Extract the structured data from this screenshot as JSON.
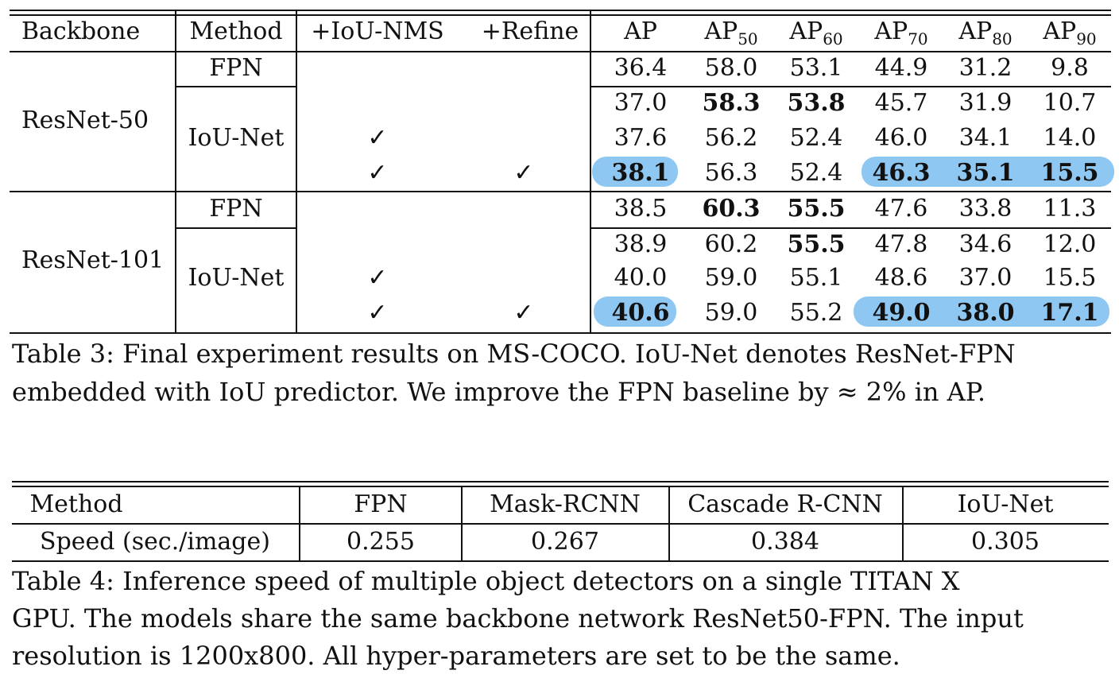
{
  "table3": {
    "headers": {
      "backbone": "Backbone",
      "method": "Method",
      "iou_nms": "+IoU-NMS",
      "refine": "+Refine",
      "ap": "AP",
      "ap50_base": "AP",
      "ap50_sub": "50",
      "ap60_base": "AP",
      "ap60_sub": "60",
      "ap70_base": "AP",
      "ap70_sub": "70",
      "ap80_base": "AP",
      "ap80_sub": "80",
      "ap90_base": "AP",
      "ap90_sub": "90"
    },
    "groups": [
      {
        "backbone": "ResNet-50",
        "fpn_label": "FPN",
        "iounet_label": "IoU-Net"
      },
      {
        "backbone": "ResNet-101",
        "fpn_label": "FPN",
        "iounet_label": "IoU-Net"
      }
    ],
    "check_mark": "✓",
    "rows": [
      {
        "values": [
          "36.4",
          "58.0",
          "53.1",
          "44.9",
          "31.2",
          "9.8"
        ]
      },
      {
        "values": [
          "37.0",
          "58.3",
          "53.8",
          "45.7",
          "31.9",
          "10.7"
        ]
      },
      {
        "values": [
          "37.6",
          "56.2",
          "52.4",
          "46.0",
          "34.1",
          "14.0"
        ]
      },
      {
        "values": [
          "38.1",
          "56.3",
          "52.4",
          "46.3",
          "35.1",
          "15.5"
        ]
      },
      {
        "values": [
          "38.5",
          "60.3",
          "55.5",
          "47.6",
          "33.8",
          "11.3"
        ]
      },
      {
        "values": [
          "38.9",
          "60.2",
          "55.5",
          "47.8",
          "34.6",
          "12.0"
        ]
      },
      {
        "values": [
          "40.0",
          "59.0",
          "55.1",
          "48.6",
          "37.0",
          "15.5"
        ]
      },
      {
        "values": [
          "40.6",
          "59.0",
          "55.2",
          "49.0",
          "38.0",
          "17.1"
        ]
      }
    ],
    "highlight_color": "#8ec8f2",
    "caption": "Table 3: Final experiment results on MS-COCO. IoU-Net denotes ResNet-FPN embedded with IoU predictor. We improve the FPN baseline by ≈ 2% in AP.",
    "caption_line1": "Table 3: Final experiment results on MS-COCO. IoU-Net denotes ResNet-FPN",
    "caption_line2": "embedded with IoU predictor. We improve the FPN baseline by ≈ 2% in AP."
  },
  "table4": {
    "headers": [
      "Method",
      "FPN",
      "Mask-RCNN",
      "Cascade R-CNN",
      "IoU-Net"
    ],
    "row": [
      "Speed (sec./image)",
      "0.255",
      "0.267",
      "0.384",
      "0.305"
    ],
    "caption_line1": "Table 4: Inference speed of multiple object detectors on a single TITAN X",
    "caption_line2": "GPU. The models share the same backbone network ResNet50-FPN. The input",
    "caption_line3": "resolution is 1200x800. All hyper-parameters are set to be the same."
  }
}
